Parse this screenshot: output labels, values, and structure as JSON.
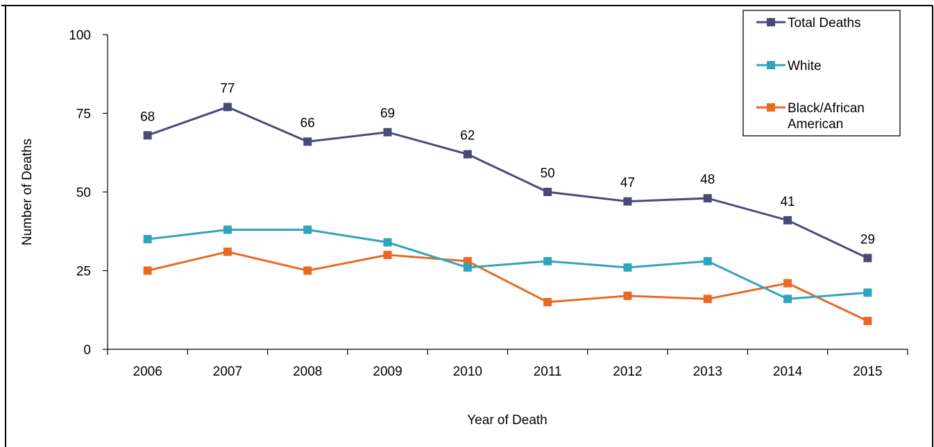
{
  "chart_data": {
    "type": "line",
    "title": "",
    "xlabel": "Year of Death",
    "ylabel": "Number of Deaths",
    "categories": [
      "2006",
      "2007",
      "2008",
      "2009",
      "2010",
      "2011",
      "2012",
      "2013",
      "2014",
      "2015"
    ],
    "ylim": [
      0,
      100
    ],
    "yticks": [
      "0",
      "25",
      "50",
      "75",
      "100"
    ],
    "grid": false,
    "legend_position": "top-right",
    "series": [
      {
        "name": "Total Deaths",
        "color": "#4a4a7a",
        "values": [
          68,
          77,
          66,
          69,
          62,
          50,
          47,
          48,
          41,
          29
        ],
        "show_labels": true
      },
      {
        "name": "White",
        "color": "#2fa4c0",
        "values": [
          35,
          38,
          38,
          34,
          26,
          28,
          26,
          28,
          16,
          18
        ],
        "show_labels": false
      },
      {
        "name": "Black/African American",
        "legend_lines": [
          "Black/African",
          "American"
        ],
        "color": "#e86a22",
        "values": [
          25,
          31,
          25,
          30,
          28,
          15,
          17,
          16,
          21,
          9
        ],
        "show_labels": false
      }
    ]
  }
}
